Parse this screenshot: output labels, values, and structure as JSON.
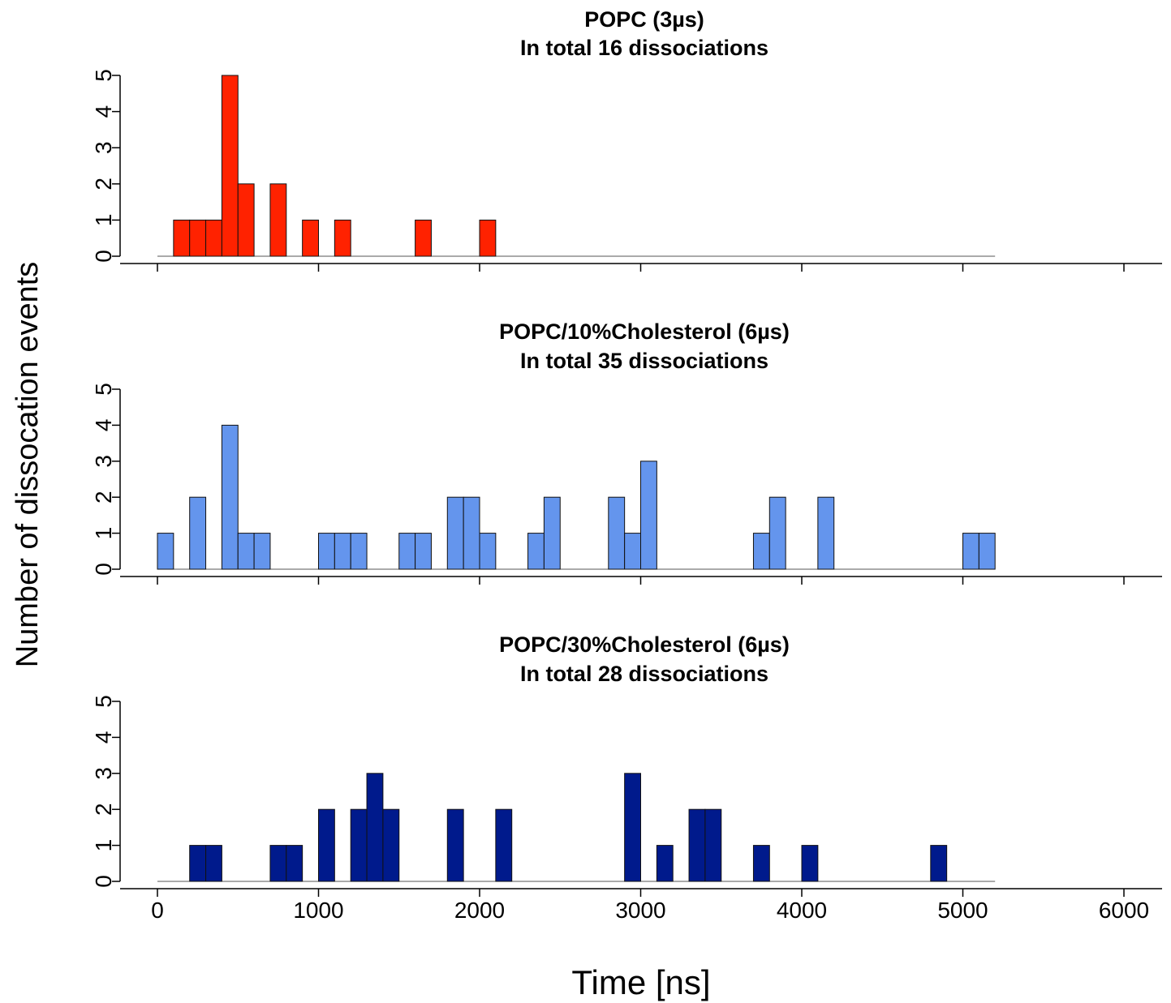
{
  "figure": {
    "ylabel": "Number of dissocation events",
    "xlabel": "Time [ns]"
  },
  "chart_data": [
    {
      "type": "bar",
      "title": "POPC (3µs)",
      "subtitle": "In total 16 dissociations",
      "color": "#ff2200",
      "bin_width": 100,
      "x": [
        100,
        200,
        300,
        400,
        500,
        700,
        900,
        1100,
        1600,
        2000
      ],
      "values": [
        1,
        1,
        1,
        5,
        2,
        2,
        1,
        1,
        1,
        1
      ],
      "xlim": [
        -250,
        6250
      ],
      "ylim": [
        0,
        5
      ],
      "yticks": [
        "0",
        "1",
        "2",
        "3",
        "4",
        "5"
      ],
      "xticks": [
        0,
        1000,
        2000,
        3000,
        4000,
        5000,
        6000
      ],
      "xtick_labels": []
    },
    {
      "type": "bar",
      "title": "POPC/10%Cholesterol (6µs)",
      "subtitle": "In total 35 dissociations",
      "color": "#6495ed",
      "bin_width": 100,
      "x": [
        0,
        200,
        400,
        500,
        600,
        1000,
        1100,
        1200,
        1500,
        1600,
        1800,
        1900,
        2000,
        2300,
        2400,
        2800,
        2900,
        3000,
        3700,
        3800,
        4100,
        5000,
        5100
      ],
      "values": [
        1,
        2,
        4,
        1,
        1,
        1,
        1,
        1,
        1,
        1,
        2,
        2,
        1,
        1,
        2,
        2,
        1,
        3,
        1,
        2,
        2,
        1,
        1
      ],
      "xlim": [
        -250,
        6250
      ],
      "ylim": [
        0,
        5
      ],
      "yticks": [
        "0",
        "1",
        "2",
        "3",
        "4",
        "5"
      ],
      "xticks": [
        0,
        1000,
        2000,
        3000,
        4000,
        5000,
        6000
      ],
      "xtick_labels": []
    },
    {
      "type": "bar",
      "title": "POPC/30%Cholesterol (6µs)",
      "subtitle": "In total 28 dissociations",
      "color": "#001a8c",
      "bin_width": 100,
      "x": [
        200,
        300,
        700,
        800,
        1000,
        1200,
        1300,
        1400,
        1800,
        2100,
        2900,
        3100,
        3300,
        3400,
        3700,
        4000,
        4800
      ],
      "values": [
        1,
        1,
        1,
        1,
        2,
        2,
        3,
        2,
        2,
        2,
        3,
        1,
        2,
        2,
        1,
        1,
        1
      ],
      "xlim": [
        -250,
        6250
      ],
      "ylim": [
        0,
        5
      ],
      "yticks": [
        "0",
        "1",
        "2",
        "3",
        "4",
        "5"
      ],
      "xticks": [
        0,
        1000,
        2000,
        3000,
        4000,
        5000,
        6000
      ],
      "xtick_labels": [
        "0",
        "1000",
        "2000",
        "3000",
        "4000",
        "5000",
        "6000"
      ]
    }
  ]
}
